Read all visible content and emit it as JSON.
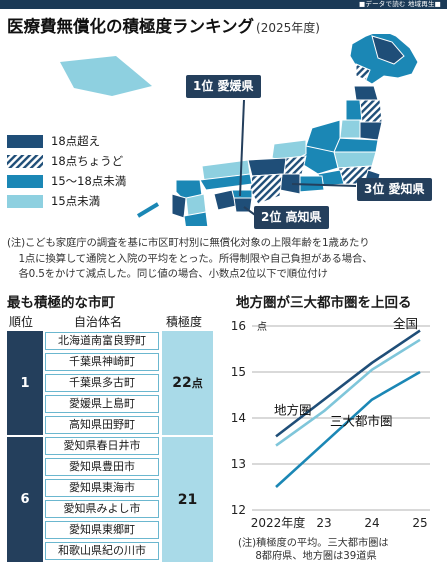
{
  "header": {
    "tag": "■データで読む 地域再生■"
  },
  "title": {
    "main": "医療費無償化の積極度ランキング",
    "year": "(2025年度)"
  },
  "map": {
    "legend": [
      {
        "label": "18点超え",
        "pattern": "solid",
        "color": "#1f4e78"
      },
      {
        "label": "18点ちょうど",
        "pattern": "hatch",
        "color": "#1f4e78"
      },
      {
        "label": "15〜18点未満",
        "pattern": "solid",
        "color": "#1b87b5"
      },
      {
        "label": "15点未満",
        "pattern": "solid",
        "color": "#8ed0e0"
      }
    ],
    "rank_labels": [
      {
        "rank": "1位",
        "pref": "愛媛県"
      },
      {
        "rank": "2位",
        "pref": "高知県"
      },
      {
        "rank": "3位",
        "pref": "愛知県"
      }
    ]
  },
  "note": [
    "(注)こども家庭庁の調査を基に市区町村別に無償化対象の上限年齢を1歳あたり",
    "1点に換算して通院と入院の平均をとった。所得制限や自己負担がある場合、",
    "各0.5をかけて減点した。同じ値の場合、小数点2位以下で順位付け"
  ],
  "ranking_table": {
    "title": "最も積極的な市町",
    "headers": [
      "順位",
      "自治体名",
      "積極度"
    ],
    "groups": [
      {
        "rank": "1",
        "score": "22",
        "unit": "点",
        "towns": [
          "北海道南富良野町",
          "千葉県神崎町",
          "千葉県多古町",
          "愛媛県上島町",
          "高知県田野町"
        ]
      },
      {
        "rank": "6",
        "score": "21",
        "unit": "",
        "towns": [
          "愛知県春日井市",
          "愛知県豊田市",
          "愛知県東海市",
          "愛知県みよし市",
          "愛知県東郷町",
          "和歌山県紀の川市"
        ]
      }
    ]
  },
  "chart_data": {
    "type": "line",
    "title": "地方圏が三大都市圏を上回る",
    "x": [
      "2022年度",
      "23",
      "24",
      "25"
    ],
    "ylim": [
      12,
      16
    ],
    "yticks": [
      12,
      13,
      14,
      15,
      16
    ],
    "yunit": "点",
    "series": [
      {
        "name": "地方圏",
        "values": [
          13.6,
          14.4,
          15.2,
          15.9
        ],
        "color": "#1f4e78"
      },
      {
        "name": "全国",
        "values": [
          13.4,
          14.15,
          15.05,
          15.7
        ],
        "color": "#7fc6da"
      },
      {
        "name": "三大都市圏",
        "values": [
          12.5,
          13.45,
          14.4,
          15.0
        ],
        "color": "#1b87b5"
      }
    ],
    "note": [
      "(注)積極度の平均。三大都市圏は",
      "8都府県、地方圏は39道県"
    ]
  }
}
